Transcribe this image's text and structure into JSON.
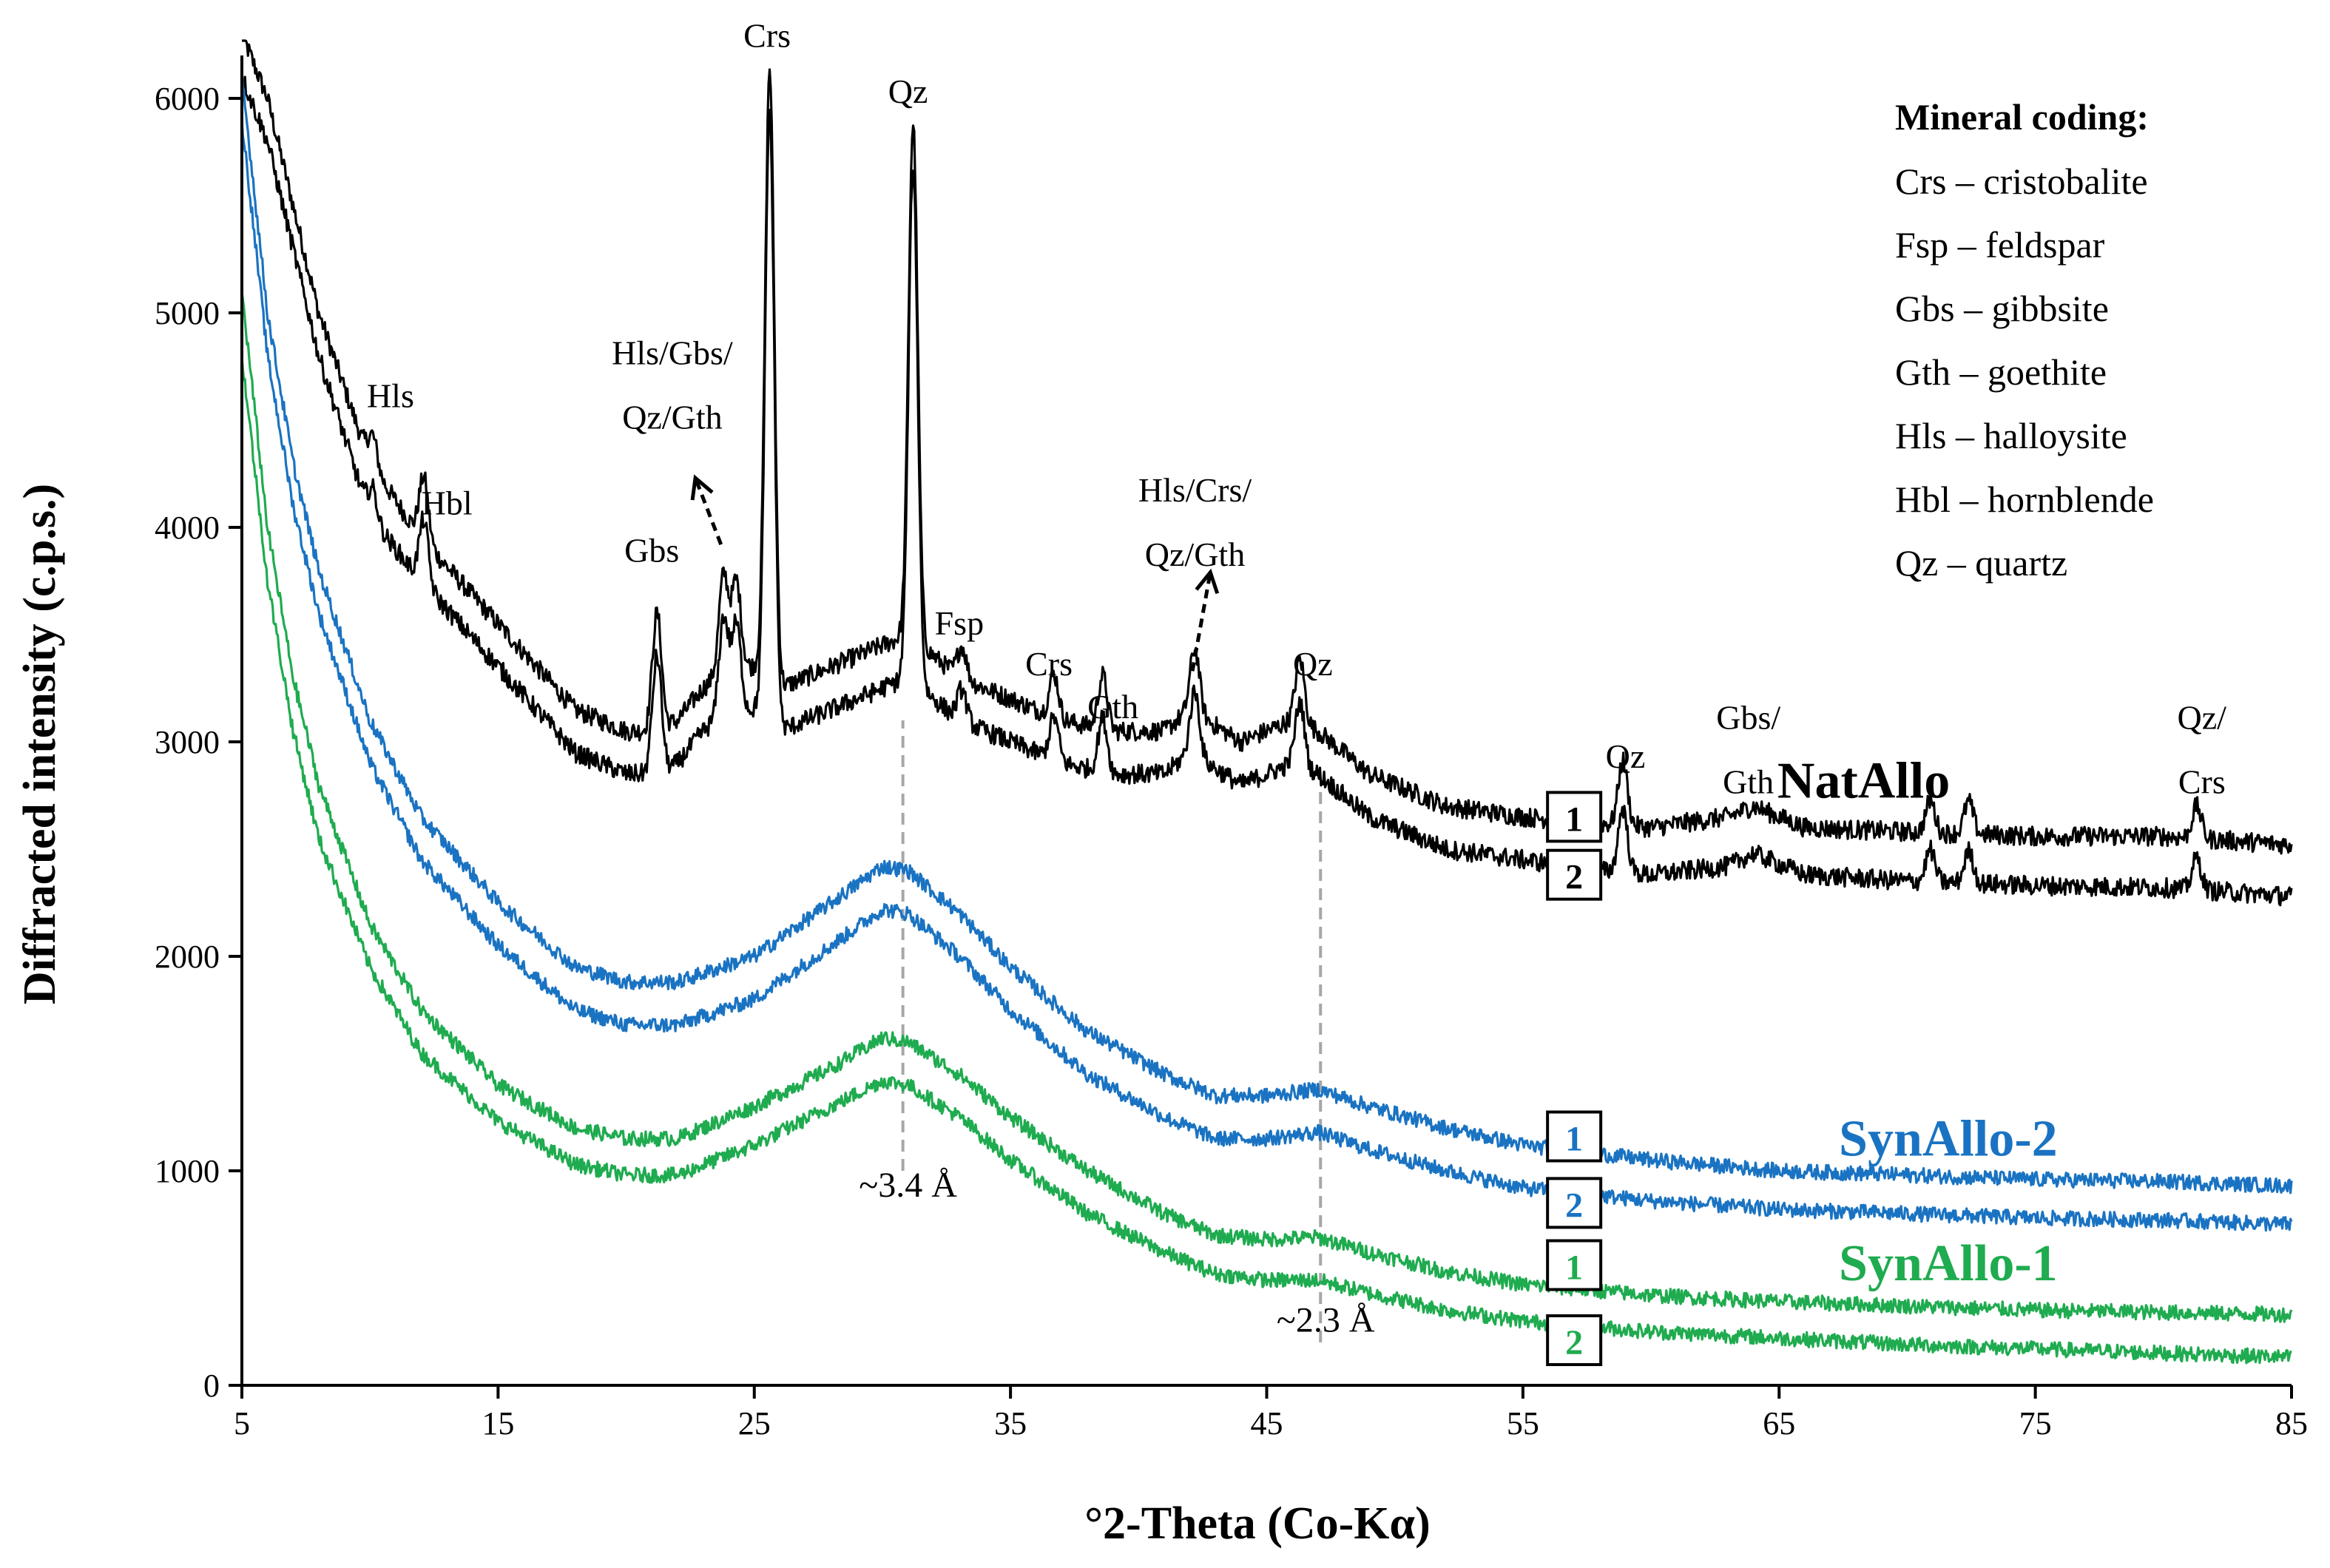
{
  "chart_data": {
    "type": "line",
    "xlabel": "°2-Theta (Co-Kα)",
    "ylabel": "Diffracted intensity (c.p.s.)",
    "xlim": [
      5,
      85
    ],
    "ylim": [
      0,
      6200
    ],
    "x_ticks": [
      "5",
      "15",
      "25",
      "35",
      "45",
      "55",
      "65",
      "75",
      "85"
    ],
    "y_ticks": [
      "0",
      "1000",
      "2000",
      "3000",
      "4000",
      "5000",
      "6000"
    ],
    "series": [
      {
        "name": "NatAllo 1",
        "group": "NatAllo",
        "replicate": "1",
        "color": "#000000",
        "points": [
          [
            5,
            6300
          ],
          [
            6,
            6000
          ],
          [
            8,
            5000
          ],
          [
            10,
            4300
          ],
          [
            12,
            3950
          ],
          [
            15,
            3550
          ],
          [
            18,
            3150
          ],
          [
            20,
            3050
          ],
          [
            21.2,
            3050
          ],
          [
            22,
            3100
          ],
          [
            23,
            3250
          ],
          [
            24,
            3350
          ],
          [
            25,
            3350
          ],
          [
            26,
            3250
          ],
          [
            28,
            3350
          ],
          [
            30,
            3450
          ],
          [
            31,
            3500
          ],
          [
            33,
            3300
          ],
          [
            35,
            3200
          ],
          [
            37,
            3100
          ],
          [
            39,
            3050
          ],
          [
            41,
            3050
          ],
          [
            42,
            3150
          ],
          [
            44,
            3000
          ],
          [
            46,
            3100
          ],
          [
            47,
            3050
          ],
          [
            49,
            2850
          ],
          [
            52,
            2700
          ],
          [
            55,
            2650
          ],
          [
            58,
            2620
          ],
          [
            60,
            2600
          ],
          [
            63,
            2650
          ],
          [
            64,
            2700
          ],
          [
            66,
            2600
          ],
          [
            70,
            2580
          ],
          [
            75,
            2560
          ],
          [
            80,
            2560
          ],
          [
            85,
            2520
          ]
        ],
        "peaks": [
          [
            10.1,
            150
          ],
          [
            12.1,
            300
          ],
          [
            21.2,
            550
          ],
          [
            23.8,
            450
          ],
          [
            24.3,
            400
          ],
          [
            25.6,
            2850
          ],
          [
            31.2,
            2400
          ],
          [
            33.1,
            150
          ],
          [
            36.7,
            200
          ],
          [
            38.6,
            250
          ],
          [
            42.2,
            300
          ],
          [
            46.3,
            300
          ],
          [
            58.9,
            300
          ],
          [
            70.9,
            150
          ],
          [
            72.4,
            150
          ],
          [
            81.3,
            150
          ]
        ]
      },
      {
        "name": "NatAllo 2",
        "group": "NatAllo",
        "replicate": "2",
        "color": "#000000",
        "points": [
          [
            5,
            6100
          ],
          [
            6,
            5800
          ],
          [
            8,
            4800
          ],
          [
            10,
            4050
          ],
          [
            12,
            3750
          ],
          [
            15,
            3350
          ],
          [
            18,
            2950
          ],
          [
            20,
            2850
          ],
          [
            21.2,
            2850
          ],
          [
            22,
            2900
          ],
          [
            23,
            3050
          ],
          [
            24,
            3150
          ],
          [
            25,
            3150
          ],
          [
            26,
            3050
          ],
          [
            28,
            3150
          ],
          [
            30,
            3250
          ],
          [
            31,
            3300
          ],
          [
            33,
            3100
          ],
          [
            35,
            3000
          ],
          [
            37,
            2900
          ],
          [
            39,
            2850
          ],
          [
            41,
            2850
          ],
          [
            42,
            2950
          ],
          [
            44,
            2800
          ],
          [
            46,
            2900
          ],
          [
            47,
            2850
          ],
          [
            49,
            2650
          ],
          [
            52,
            2500
          ],
          [
            55,
            2450
          ],
          [
            58,
            2400
          ],
          [
            60,
            2380
          ],
          [
            63,
            2420
          ],
          [
            64,
            2480
          ],
          [
            66,
            2380
          ],
          [
            70,
            2350
          ],
          [
            75,
            2330
          ],
          [
            80,
            2320
          ],
          [
            85,
            2280
          ]
        ],
        "peaks": [
          [
            10.1,
            150
          ],
          [
            12.1,
            300
          ],
          [
            21.2,
            550
          ],
          [
            23.8,
            450
          ],
          [
            24.3,
            400
          ],
          [
            25.6,
            2850
          ],
          [
            31.2,
            2400
          ],
          [
            33.1,
            150
          ],
          [
            36.7,
            200
          ],
          [
            38.6,
            250
          ],
          [
            42.2,
            300
          ],
          [
            46.3,
            300
          ],
          [
            58.9,
            300
          ],
          [
            70.9,
            150
          ],
          [
            72.4,
            150
          ],
          [
            81.3,
            150
          ]
        ]
      },
      {
        "name": "SynAllo-2 1",
        "group": "SynAllo-2",
        "replicate": "1",
        "color": "#1a73c2",
        "points": [
          [
            5,
            6100
          ],
          [
            6,
            5000
          ],
          [
            7,
            4300
          ],
          [
            8,
            3800
          ],
          [
            10,
            3100
          ],
          [
            12,
            2650
          ],
          [
            15,
            2250
          ],
          [
            18,
            1950
          ],
          [
            20,
            1880
          ],
          [
            22,
            1880
          ],
          [
            25,
            2000
          ],
          [
            28,
            2250
          ],
          [
            30,
            2420
          ],
          [
            31,
            2400
          ],
          [
            33,
            2200
          ],
          [
            35,
            1950
          ],
          [
            38,
            1650
          ],
          [
            41,
            1450
          ],
          [
            43,
            1350
          ],
          [
            45,
            1350
          ],
          [
            47,
            1380
          ],
          [
            49,
            1300
          ],
          [
            52,
            1200
          ],
          [
            55,
            1120
          ],
          [
            60,
            1050
          ],
          [
            65,
            1000
          ],
          [
            70,
            980
          ],
          [
            75,
            960
          ],
          [
            80,
            950
          ],
          [
            85,
            930
          ]
        ],
        "peaks": []
      },
      {
        "name": "SynAllo-2 2",
        "group": "SynAllo-2",
        "replicate": "2",
        "color": "#1a73c2",
        "points": [
          [
            5,
            5900
          ],
          [
            6,
            4800
          ],
          [
            7,
            4100
          ],
          [
            8,
            3600
          ],
          [
            10,
            2900
          ],
          [
            12,
            2450
          ],
          [
            15,
            2050
          ],
          [
            18,
            1750
          ],
          [
            20,
            1680
          ],
          [
            22,
            1680
          ],
          [
            25,
            1800
          ],
          [
            28,
            2050
          ],
          [
            30,
            2220
          ],
          [
            31,
            2200
          ],
          [
            33,
            2000
          ],
          [
            35,
            1750
          ],
          [
            38,
            1450
          ],
          [
            41,
            1250
          ],
          [
            43,
            1150
          ],
          [
            45,
            1150
          ],
          [
            47,
            1180
          ],
          [
            49,
            1100
          ],
          [
            52,
            1000
          ],
          [
            55,
            920
          ],
          [
            60,
            860
          ],
          [
            65,
            820
          ],
          [
            70,
            800
          ],
          [
            75,
            780
          ],
          [
            80,
            770
          ],
          [
            85,
            750
          ]
        ],
        "peaks": []
      },
      {
        "name": "SynAllo-1 1",
        "group": "SynAllo-1",
        "replicate": "1",
        "color": "#1fab4f",
        "points": [
          [
            5,
            5100
          ],
          [
            6,
            4000
          ],
          [
            7,
            3300
          ],
          [
            8,
            2800
          ],
          [
            10,
            2150
          ],
          [
            12,
            1750
          ],
          [
            15,
            1400
          ],
          [
            18,
            1200
          ],
          [
            20,
            1150
          ],
          [
            22,
            1150
          ],
          [
            25,
            1300
          ],
          [
            28,
            1480
          ],
          [
            30,
            1620
          ],
          [
            31,
            1600
          ],
          [
            33,
            1450
          ],
          [
            35,
            1250
          ],
          [
            38,
            1000
          ],
          [
            41,
            800
          ],
          [
            43,
            700
          ],
          [
            45,
            680
          ],
          [
            47,
            690
          ],
          [
            49,
            620
          ],
          [
            52,
            530
          ],
          [
            55,
            470
          ],
          [
            60,
            420
          ],
          [
            65,
            390
          ],
          [
            70,
            370
          ],
          [
            75,
            350
          ],
          [
            80,
            340
          ],
          [
            85,
            330
          ]
        ],
        "peaks": []
      },
      {
        "name": "SynAllo-1 2",
        "group": "SynAllo-1",
        "replicate": "2",
        "color": "#1fab4f",
        "points": [
          [
            5,
            4800
          ],
          [
            6,
            3750
          ],
          [
            7,
            3050
          ],
          [
            8,
            2550
          ],
          [
            10,
            1950
          ],
          [
            12,
            1550
          ],
          [
            15,
            1230
          ],
          [
            18,
            1030
          ],
          [
            20,
            980
          ],
          [
            22,
            980
          ],
          [
            25,
            1120
          ],
          [
            28,
            1300
          ],
          [
            30,
            1420
          ],
          [
            31,
            1400
          ],
          [
            33,
            1250
          ],
          [
            35,
            1050
          ],
          [
            38,
            800
          ],
          [
            41,
            620
          ],
          [
            43,
            520
          ],
          [
            45,
            490
          ],
          [
            47,
            490
          ],
          [
            49,
            430
          ],
          [
            52,
            350
          ],
          [
            55,
            300
          ],
          [
            60,
            250
          ],
          [
            65,
            220
          ],
          [
            70,
            190
          ],
          [
            75,
            170
          ],
          [
            80,
            150
          ],
          [
            85,
            130
          ]
        ],
        "peaks": []
      }
    ],
    "reference_lines": [
      {
        "x": 30.8,
        "y_from": 1000,
        "y_to": 3100,
        "label": "~3.4 Å",
        "label_x": 31.0,
        "label_y": 880
      },
      {
        "x": 47.1,
        "y_from": 200,
        "y_to": 2800,
        "label": "~2.3 Å",
        "label_x": 47.3,
        "label_y": 250
      }
    ],
    "peak_labels": [
      {
        "text": "Hls",
        "x": 10.8,
        "y": 4560
      },
      {
        "text": "Hbl",
        "x": 13.0,
        "y": 4060
      },
      {
        "text": "Hls/Gbs/",
        "x": 21.8,
        "y": 4760
      },
      {
        "text": "Qz/Gth",
        "x": 21.8,
        "y": 4460
      },
      {
        "text": "Gbs",
        "x": 21.0,
        "y": 3840
      },
      {
        "text": "Crs",
        "x": 25.5,
        "y": 6240
      },
      {
        "text": "Qz",
        "x": 31.0,
        "y": 5980
      },
      {
        "text": "Fsp",
        "x": 33.0,
        "y": 3500
      },
      {
        "text": "Crs",
        "x": 36.5,
        "y": 3310
      },
      {
        "text": "Gth",
        "x": 39.0,
        "y": 3110
      },
      {
        "text": "Hls/Crs/",
        "x": 42.2,
        "y": 4120
      },
      {
        "text": "Qz/Gth",
        "x": 42.2,
        "y": 3820
      },
      {
        "text": "Qz",
        "x": 46.8,
        "y": 3310
      },
      {
        "text": "Qz",
        "x": 59.0,
        "y": 2880
      },
      {
        "text": "Gbs/",
        "x": 63.8,
        "y": 3060
      },
      {
        "text": "Gth",
        "x": 63.8,
        "y": 2760
      },
      {
        "text": "Qz/",
        "x": 81.5,
        "y": 3060
      },
      {
        "text": "Crs",
        "x": 81.5,
        "y": 2760
      }
    ],
    "series_labels": [
      {
        "text": "NatAllo",
        "x": 68.3,
        "y": 2740,
        "color": "#000000"
      },
      {
        "text": "SynAllo-2",
        "x": 71.6,
        "y": 1070,
        "color": "#1a73c2"
      },
      {
        "text": "SynAllo-1",
        "x": 71.6,
        "y": 490,
        "color": "#1fab4f"
      }
    ],
    "replicate_boxes": [
      {
        "text": "1",
        "x": 57.0,
        "y": 2640,
        "color": "#000000"
      },
      {
        "text": "2",
        "x": 57.0,
        "y": 2370,
        "color": "#000000"
      },
      {
        "text": "1",
        "x": 57.0,
        "y": 1150,
        "color": "#1a73c2"
      },
      {
        "text": "2",
        "x": 57.0,
        "y": 840,
        "color": "#1a73c2"
      },
      {
        "text": "1",
        "x": 57.0,
        "y": 550,
        "color": "#1fab4f"
      },
      {
        "text": "2",
        "x": 57.0,
        "y": 200,
        "color": "#1fab4f"
      }
    ],
    "arrows": [
      {
        "from": [
          23.7,
          3920
        ],
        "to": [
          22.7,
          4230
        ]
      },
      {
        "from": [
          42.1,
          3330
        ],
        "to": [
          42.8,
          3790
        ]
      }
    ],
    "legend": {
      "title": "Mineral coding:",
      "items": [
        "Crs – cristobalite",
        "Fsp – feldspar",
        "Gbs – gibbsite",
        "Gth – goethite",
        "Hls – halloysite",
        "Hbl – hornblende",
        "Qz – quartz"
      ]
    }
  }
}
